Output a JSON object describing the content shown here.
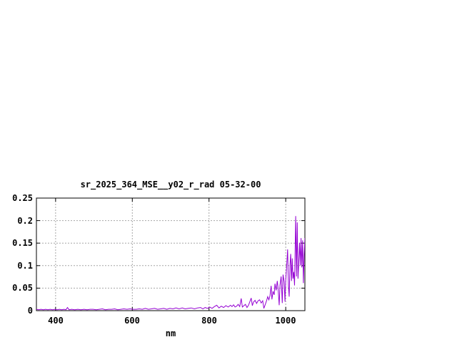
{
  "window": {
    "background": "#ffffff"
  },
  "chart_data": {
    "type": "line",
    "title": "sr_2025_364_MSE__y02_r_rad 05-32-00",
    "xlabel": "nm",
    "ylabel": "",
    "xlim": [
      350,
      1050
    ],
    "ylim": [
      0,
      0.25
    ],
    "grid": true,
    "legend": "none",
    "line_color": "#9400D3",
    "grid_color": "#a6a6a6",
    "border_color": "#000000",
    "xticks": {
      "values": [
        400,
        600,
        800,
        1000
      ],
      "labels": [
        "400",
        "600",
        "800",
        "1000"
      ]
    },
    "yticks": {
      "values": [
        0,
        0.05,
        0.1,
        0.15,
        0.2,
        0.25
      ],
      "labels": [
        "0",
        "0.05",
        "0.1",
        "0.15",
        "0.2",
        "0.25"
      ]
    },
    "series": [
      {
        "points": [
          [
            350,
            0.003
          ],
          [
            356,
            0.002
          ],
          [
            362,
            0.003
          ],
          [
            368,
            0.002
          ],
          [
            374,
            0.003
          ],
          [
            380,
            0.002
          ],
          [
            386,
            0.003
          ],
          [
            392,
            0.002
          ],
          [
            398,
            0.003
          ],
          [
            404,
            0.002
          ],
          [
            410,
            0.003
          ],
          [
            416,
            0.002
          ],
          [
            422,
            0.003
          ],
          [
            427,
            0.002
          ],
          [
            431,
            0.007
          ],
          [
            435,
            0.002
          ],
          [
            442,
            0.003
          ],
          [
            450,
            0.002
          ],
          [
            458,
            0.003
          ],
          [
            466,
            0.002
          ],
          [
            474,
            0.003
          ],
          [
            482,
            0.002
          ],
          [
            490,
            0.003
          ],
          [
            498,
            0.003
          ],
          [
            506,
            0.002
          ],
          [
            514,
            0.003
          ],
          [
            522,
            0.004
          ],
          [
            530,
            0.002
          ],
          [
            538,
            0.003
          ],
          [
            546,
            0.003
          ],
          [
            554,
            0.004
          ],
          [
            562,
            0.002
          ],
          [
            570,
            0.003
          ],
          [
            578,
            0.004
          ],
          [
            586,
            0.003
          ],
          [
            594,
            0.004
          ],
          [
            602,
            0.003
          ],
          [
            610,
            0.003
          ],
          [
            618,
            0.004
          ],
          [
            626,
            0.003
          ],
          [
            634,
            0.005
          ],
          [
            642,
            0.003
          ],
          [
            650,
            0.004
          ],
          [
            658,
            0.005
          ],
          [
            666,
            0.003
          ],
          [
            674,
            0.004
          ],
          [
            682,
            0.005
          ],
          [
            690,
            0.003
          ],
          [
            698,
            0.005
          ],
          [
            706,
            0.004
          ],
          [
            714,
            0.006
          ],
          [
            722,
            0.004
          ],
          [
            730,
            0.006
          ],
          [
            738,
            0.004
          ],
          [
            746,
            0.005
          ],
          [
            754,
            0.006
          ],
          [
            762,
            0.004
          ],
          [
            770,
            0.006
          ],
          [
            778,
            0.007
          ],
          [
            784,
            0.004
          ],
          [
            790,
            0.007
          ],
          [
            796,
            0.005
          ],
          [
            802,
            0.008
          ],
          [
            808,
            0.005
          ],
          [
            814,
            0.009
          ],
          [
            820,
            0.012
          ],
          [
            826,
            0.006
          ],
          [
            832,
            0.01
          ],
          [
            838,
            0.007
          ],
          [
            844,
            0.011
          ],
          [
            850,
            0.008
          ],
          [
            856,
            0.012
          ],
          [
            860,
            0.009
          ],
          [
            864,
            0.013
          ],
          [
            868,
            0.008
          ],
          [
            872,
            0.01
          ],
          [
            876,
            0.014
          ],
          [
            880,
            0.009
          ],
          [
            884,
            0.027
          ],
          [
            887,
            0.008
          ],
          [
            891,
            0.011
          ],
          [
            895,
            0.014
          ],
          [
            899,
            0.007
          ],
          [
            903,
            0.012
          ],
          [
            907,
            0.021
          ],
          [
            910,
            0.028
          ],
          [
            913,
            0.011
          ],
          [
            916,
            0.019
          ],
          [
            920,
            0.023
          ],
          [
            924,
            0.016
          ],
          [
            928,
            0.022
          ],
          [
            932,
            0.024
          ],
          [
            936,
            0.017
          ],
          [
            940,
            0.022
          ],
          [
            943,
            0.005
          ],
          [
            946,
            0.012
          ],
          [
            950,
            0.022
          ],
          [
            953,
            0.031
          ],
          [
            956,
            0.024
          ],
          [
            959,
            0.033
          ],
          [
            962,
            0.055
          ],
          [
            964,
            0.025
          ],
          [
            967,
            0.043
          ],
          [
            970,
            0.035
          ],
          [
            972,
            0.06
          ],
          [
            975,
            0.045
          ],
          [
            978,
            0.066
          ],
          [
            980,
            0.05
          ],
          [
            983,
            0.012
          ],
          [
            985,
            0.056
          ],
          [
            988,
            0.076
          ],
          [
            991,
            0.017
          ],
          [
            993,
            0.08
          ],
          [
            996,
            0.064
          ],
          [
            998,
            0.02
          ],
          [
            1000,
            0.066
          ],
          [
            1002,
            0.092
          ],
          [
            1005,
            0.136
          ],
          [
            1007,
            0.056
          ],
          [
            1009,
            0.031
          ],
          [
            1011,
            0.102
          ],
          [
            1013,
            0.126
          ],
          [
            1015,
            0.066
          ],
          [
            1017,
            0.116
          ],
          [
            1019,
            0.071
          ],
          [
            1021,
            0.086
          ],
          [
            1023,
            0.056
          ],
          [
            1026,
            0.21
          ],
          [
            1028,
            0.076
          ],
          [
            1030,
            0.196
          ],
          [
            1032,
            0.071
          ],
          [
            1034,
            0.106
          ],
          [
            1036,
            0.151
          ],
          [
            1038,
            0.101
          ],
          [
            1040,
            0.161
          ],
          [
            1042,
            0.096
          ],
          [
            1044,
            0.156
          ],
          [
            1046,
            0.061
          ],
          [
            1048,
            0.121
          ],
          [
            1050,
            0.161
          ]
        ]
      }
    ]
  }
}
